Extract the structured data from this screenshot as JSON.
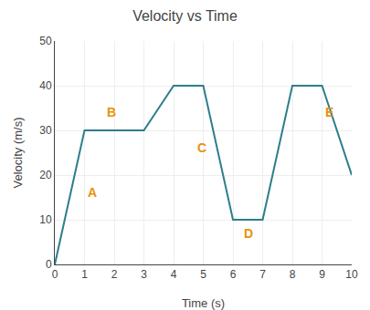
{
  "chart_data": {
    "type": "line",
    "title": "Velocity vs Time",
    "xlabel": "Time (s)",
    "ylabel": "Velocity (m/s)",
    "x": [
      0,
      1,
      3,
      4,
      5,
      6,
      7,
      8,
      9,
      10
    ],
    "values": [
      0,
      30,
      30,
      40,
      40,
      10,
      10,
      40,
      40,
      20
    ],
    "color": "#2e7d8c",
    "xlim": [
      0,
      10
    ],
    "ylim": [
      0,
      50
    ],
    "xticks": [
      0,
      1,
      2,
      3,
      4,
      5,
      6,
      7,
      8,
      9,
      10
    ],
    "yticks": [
      0,
      10,
      20,
      30,
      40,
      50
    ],
    "grid": true,
    "annotations": [
      {
        "text": "A",
        "x": 1.05,
        "y": 14,
        "color": "#e8920a"
      },
      {
        "text": "B",
        "x": 1.7,
        "y": 32,
        "color": "#e8920a"
      },
      {
        "text": "C",
        "x": 4.75,
        "y": 24,
        "color": "#e8920a"
      },
      {
        "text": "D",
        "x": 6.3,
        "y": 5,
        "color": "#e8920a"
      },
      {
        "text": "E",
        "x": 9.05,
        "y": 32,
        "color": "#e8920a"
      }
    ]
  }
}
